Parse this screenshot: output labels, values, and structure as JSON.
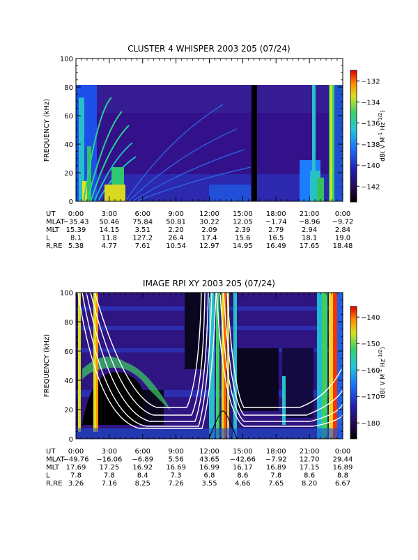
{
  "chart_data": [
    {
      "type": "heatmap",
      "title": "CLUSTER 4 WHISPER 2003 205 (07/24)",
      "ylabel": "FREQUENCY (kHz)",
      "ylim": [
        0,
        100
      ],
      "yticks": [
        0,
        20,
        40,
        60,
        80,
        100
      ],
      "data_top_khz": 80,
      "xlim_hours": [
        0,
        24
      ],
      "colorbar": {
        "label": "dB( V M⁻¹ Hz⁻¹ᐟ²)",
        "label_text": "dB( V M",
        "label_sup1": "-1",
        "label_mid": " Hz",
        "label_sup2": "-1/2",
        "label_end": ")",
        "range": [
          -143.5,
          -131
        ],
        "ticks": [
          "-132",
          "-134",
          "-136",
          "-138",
          "-140",
          "-142"
        ]
      },
      "ephemeris": {
        "row_labels": [
          "UT",
          "MLAT",
          "MLT",
          "L",
          "R,RE"
        ],
        "columns": [
          [
            "0:00",
            "-35.43",
            "15.39",
            "8.1",
            "5.38"
          ],
          [
            "3:00",
            "50.46",
            "14.15",
            "11.8",
            "4.77"
          ],
          [
            "6:00",
            "75.84",
            "3.51",
            "127.2",
            "7.61"
          ],
          [
            "9:00",
            "50.81",
            "2.20",
            "26.4",
            "10.54"
          ],
          [
            "12:00",
            "30.22",
            "2.09",
            "17.4",
            "12.97"
          ],
          [
            "15:00",
            "12.05",
            "2.39",
            "15.6",
            "14.95"
          ],
          [
            "18:00",
            "-1.74",
            "2.79",
            "16.5",
            "16.49"
          ],
          [
            "21:00",
            "-8.96",
            "2.94",
            "18.1",
            "17.65"
          ],
          [
            "0:00",
            "-9.72",
            "2.84",
            "19.0",
            "18.48"
          ]
        ]
      }
    },
    {
      "type": "heatmap",
      "title": "IMAGE RPI XY 2003 205 (07/24)",
      "ylabel": "FREQUENCY (kHz)",
      "ylim": [
        0,
        100
      ],
      "yticks": [
        0,
        20,
        40,
        60,
        80,
        100
      ],
      "xlim_hours": [
        0,
        24
      ],
      "colorbar": {
        "label_text": "dB( V M",
        "label_sup1": "-1",
        "label_mid": " Hz",
        "label_sup2": "-1/2",
        "label_end": ")",
        "range": [
          -186,
          -136
        ],
        "ticks": [
          "-140",
          "-150",
          "-160",
          "-170",
          "-180"
        ]
      },
      "ephemeris": {
        "row_labels": [
          "UT",
          "MLAT",
          "MLT",
          "L",
          "R,RE"
        ],
        "columns": [
          [
            "0:00",
            "-49.76",
            "17.69",
            "7.8",
            "3.26"
          ],
          [
            "3:00",
            "-16.06",
            "17.25",
            "7.8",
            "7.16"
          ],
          [
            "6:00",
            "-6.89",
            "16.92",
            "8.4",
            "8.25"
          ],
          [
            "9:00",
            "5.56",
            "16.69",
            "7.3",
            "7.26"
          ],
          [
            "12:00",
            "43.65",
            "16.99",
            "6.8",
            "3.55"
          ],
          [
            "15:00",
            "-42.66",
            "16.17",
            "8.6",
            "4.66"
          ],
          [
            "18:00",
            "-7.92",
            "16.89",
            "7.8",
            "7.65"
          ],
          [
            "21:00",
            "12.70",
            "17.15",
            "8.6",
            "8.20"
          ],
          [
            "0:00",
            "29.44",
            "16.89",
            "8.8",
            "6.67"
          ]
        ]
      }
    }
  ]
}
